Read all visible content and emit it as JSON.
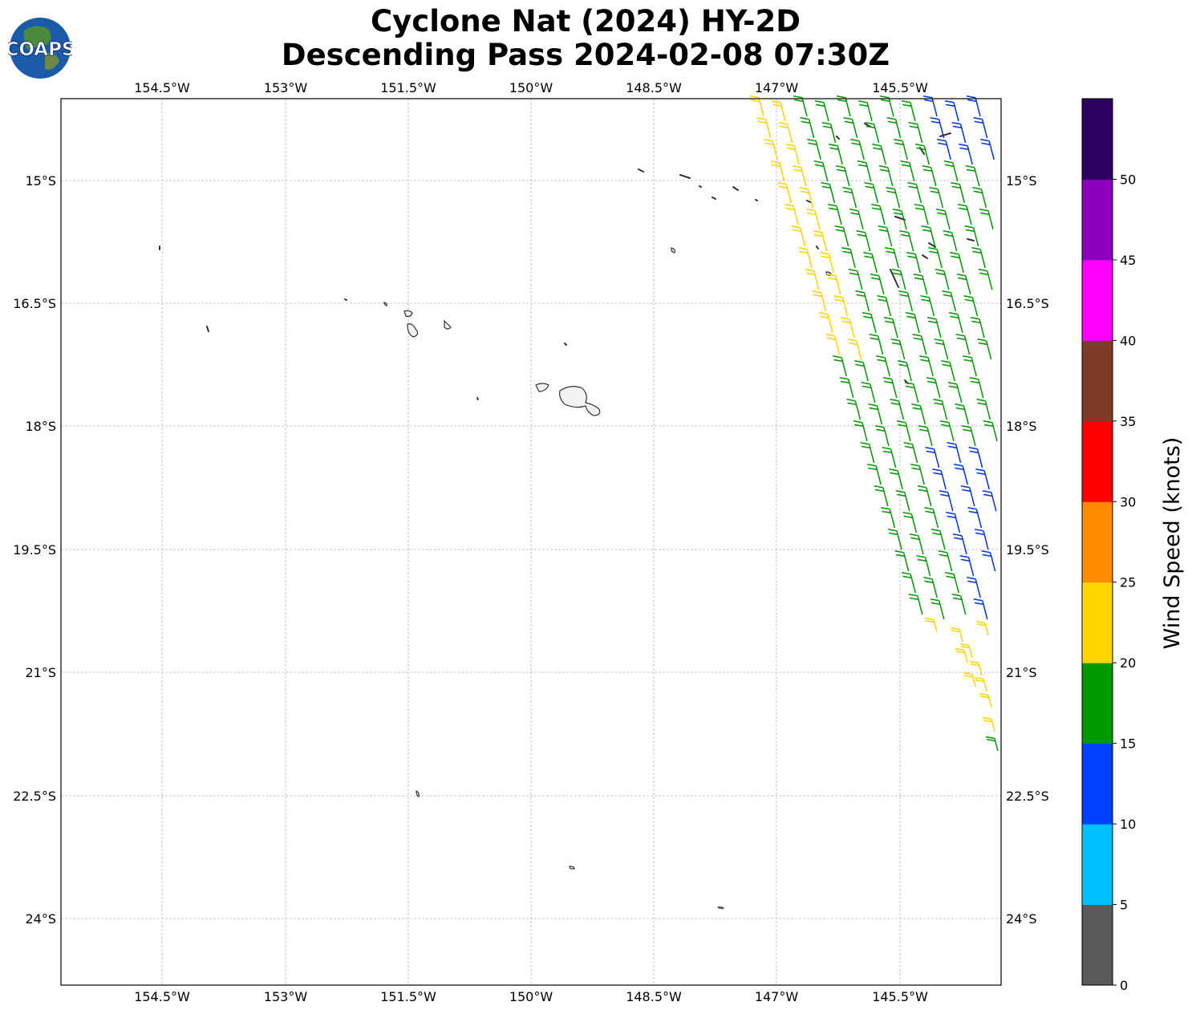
{
  "title": {
    "line1": "Cyclone Nat (2024) HY-2D",
    "line2": "Descending Pass 2024-02-08 07:30Z"
  },
  "logo": {
    "text": "COAPS",
    "icon": "globe-icon"
  },
  "map": {
    "lon_ticks": [
      "154.5°W",
      "153°W",
      "151.5°W",
      "150°W",
      "148.5°W",
      "147°W",
      "145.5°W"
    ],
    "lat_ticks": [
      "15°S",
      "16.5°S",
      "18°S",
      "19.5°S",
      "21°S",
      "22.5°S",
      "24°S"
    ],
    "grid": true
  },
  "colorbar": {
    "label": "Wind Speed (knots)",
    "ticks": [
      "0",
      "5",
      "10",
      "15",
      "20",
      "25",
      "30",
      "35",
      "40",
      "45",
      "50"
    ],
    "colors": [
      "#5a5a5a",
      "#00bfff",
      "#0040ff",
      "#009900",
      "#ffd700",
      "#ff8c00",
      "#ff0000",
      "#7f3b28",
      "#ff00ff",
      "#8b00bf",
      "#2b005f"
    ]
  },
  "barb_colors": {
    "yellow": "#ffd200",
    "green": "#009900",
    "blue": "#0033ee"
  }
}
